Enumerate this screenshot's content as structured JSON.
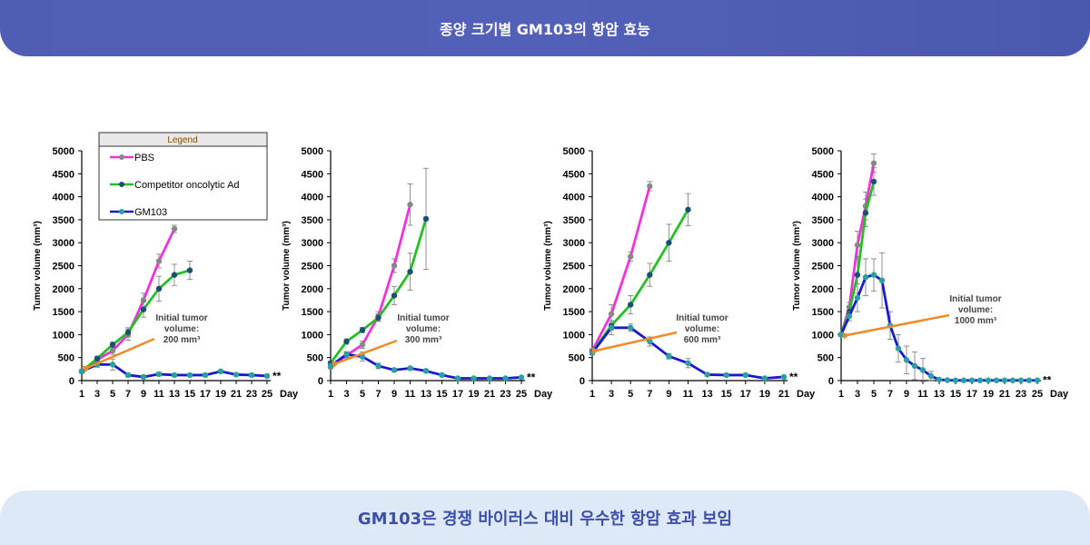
{
  "header": {
    "title": "종양 크기별 GM103의 항암 효능"
  },
  "footer": {
    "caption": "GM103은 경쟁 바이러스 대비 우수한 항암 효과 보임"
  },
  "colors": {
    "PBS": "#ee33dd",
    "Competitor oncolytic Ad": "#22c022",
    "GM103": "#1a1acc",
    "arrow": "#f08a28"
  },
  "legend": {
    "title": "Legend",
    "items": [
      "PBS",
      "Competitor oncolytic Ad",
      "GM103"
    ]
  },
  "chart_data": [
    {
      "type": "line",
      "ylabel": "Tumor volume (mm³)",
      "xlabel": "Day",
      "ylim": [
        0,
        5000
      ],
      "yticks": [
        0,
        500,
        1000,
        1500,
        2000,
        2500,
        3000,
        3500,
        4000,
        4500,
        5000
      ],
      "xticks": [
        1,
        3,
        5,
        7,
        9,
        11,
        13,
        15,
        17,
        19,
        21,
        23,
        25
      ],
      "xlim": [
        1,
        25
      ],
      "annotation": "Initial tumor volume: 200 mm³",
      "annotation_lines": [
        "Initial tumor",
        "volume:",
        "200 mm³"
      ],
      "significance": "**",
      "series": [
        {
          "name": "PBS",
          "x": [
            1,
            3,
            5,
            7,
            9,
            11,
            13
          ],
          "y": [
            200,
            450,
            650,
            1000,
            1750,
            2600,
            3300
          ],
          "err": [
            40,
            50,
            80,
            120,
            150,
            150,
            80
          ]
        },
        {
          "name": "Competitor oncolytic Ad",
          "x": [
            1,
            3,
            5,
            7,
            9,
            11,
            13,
            15
          ],
          "y": [
            200,
            480,
            780,
            1050,
            1550,
            2000,
            2300,
            2400
          ],
          "err": [
            40,
            50,
            60,
            100,
            170,
            270,
            230,
            200
          ]
        },
        {
          "name": "GM103",
          "x": [
            1,
            3,
            5,
            7,
            9,
            11,
            13,
            15,
            17,
            19,
            21,
            23,
            25
          ],
          "y": [
            200,
            350,
            350,
            120,
            80,
            140,
            120,
            120,
            120,
            200,
            130,
            120,
            100
          ],
          "err": [
            30,
            60,
            120,
            40,
            30,
            40,
            30,
            30,
            30,
            30,
            30,
            30,
            20
          ]
        }
      ]
    },
    {
      "type": "line",
      "ylabel": "Tumor volume (mm³)",
      "xlabel": "Day",
      "ylim": [
        0,
        5000
      ],
      "yticks": [
        0,
        500,
        1000,
        1500,
        2000,
        2500,
        3000,
        3500,
        4000,
        4500,
        5000
      ],
      "xticks": [
        1,
        3,
        5,
        7,
        9,
        11,
        13,
        15,
        17,
        19,
        21,
        23,
        25
      ],
      "xlim": [
        1,
        25
      ],
      "annotation": "Initial tumor volume: 300 mm³",
      "annotation_lines": [
        "Initial tumor",
        "volume:",
        "300 mm³"
      ],
      "significance": "**",
      "series": [
        {
          "name": "PBS",
          "x": [
            1,
            3,
            5,
            7,
            9,
            11
          ],
          "y": [
            300,
            550,
            780,
            1400,
            2500,
            3830
          ],
          "err": [
            40,
            70,
            80,
            100,
            150,
            450
          ]
        },
        {
          "name": "Competitor oncolytic Ad",
          "x": [
            1,
            3,
            5,
            7,
            9,
            11,
            13
          ],
          "y": [
            380,
            850,
            1100,
            1370,
            1850,
            2370,
            3520
          ],
          "err": [
            40,
            60,
            60,
            80,
            200,
            400,
            1100
          ]
        },
        {
          "name": "GM103",
          "x": [
            1,
            3,
            5,
            7,
            9,
            11,
            13,
            15,
            17,
            19,
            21,
            23,
            25
          ],
          "y": [
            320,
            570,
            520,
            320,
            230,
            270,
            210,
            120,
            50,
            50,
            50,
            50,
            70
          ],
          "err": [
            40,
            60,
            100,
            60,
            40,
            30,
            30,
            30,
            20,
            20,
            20,
            20,
            20
          ]
        }
      ]
    },
    {
      "type": "line",
      "ylabel": "Tumor volume (mm³)",
      "xlabel": "Day",
      "ylim": [
        0,
        5000
      ],
      "yticks": [
        0,
        500,
        1000,
        1500,
        2000,
        2500,
        3000,
        3500,
        4000,
        4500,
        5000
      ],
      "xticks": [
        1,
        3,
        5,
        7,
        9,
        11,
        13,
        15,
        17,
        19,
        21
      ],
      "xlim": [
        1,
        21
      ],
      "annotation": "Initial tumor volume: 600 mm³",
      "annotation_lines": [
        "Initial tumor",
        "volume:",
        "600 mm³"
      ],
      "significance": "**",
      "series": [
        {
          "name": "PBS",
          "x": [
            1,
            3,
            5,
            7
          ],
          "y": [
            650,
            1450,
            2700,
            4230
          ],
          "err": [
            40,
            200,
            100,
            100
          ]
        },
        {
          "name": "Competitor oncolytic Ad",
          "x": [
            1,
            3,
            5,
            7,
            9,
            11
          ],
          "y": [
            620,
            1200,
            1650,
            2300,
            3000,
            3720
          ],
          "err": [
            40,
            100,
            200,
            250,
            400,
            350
          ]
        },
        {
          "name": "GM103",
          "x": [
            1,
            3,
            5,
            7,
            9,
            11,
            13,
            15,
            17,
            19,
            21
          ],
          "y": [
            600,
            1150,
            1150,
            850,
            530,
            380,
            130,
            120,
            120,
            50,
            80
          ],
          "err": [
            40,
            150,
            80,
            100,
            60,
            100,
            30,
            30,
            30,
            20,
            20
          ]
        }
      ]
    },
    {
      "type": "line",
      "ylabel": "Tumor volume (mm³)",
      "xlabel": "Day",
      "ylim": [
        0,
        5000
      ],
      "yticks": [
        0,
        500,
        1000,
        1500,
        2000,
        2500,
        3000,
        3500,
        4000,
        4500,
        5000
      ],
      "xticks": [
        1,
        3,
        5,
        7,
        9,
        11,
        13,
        15,
        17,
        19,
        21,
        23,
        25
      ],
      "xlim": [
        1,
        25
      ],
      "annotation": "Initial tumor volume: 1000 mm³",
      "annotation_lines": [
        "Initial tumor",
        "volume:",
        "1000 mm³"
      ],
      "significance": "**",
      "series": [
        {
          "name": "PBS",
          "x": [
            1,
            2,
            3,
            4,
            5
          ],
          "y": [
            1000,
            1600,
            2950,
            3800,
            4730
          ],
          "err": [
            40,
            100,
            300,
            300,
            200
          ]
        },
        {
          "name": "Competitor oncolytic Ad",
          "x": [
            1,
            2,
            3,
            4,
            5
          ],
          "y": [
            1000,
            1500,
            2300,
            3650,
            4330
          ],
          "err": [
            40,
            100,
            400,
            300,
            300
          ]
        },
        {
          "name": "GM103",
          "x": [
            1,
            2,
            3,
            4,
            5,
            6,
            7,
            8,
            9,
            10,
            11,
            12,
            13,
            14,
            15,
            16,
            17,
            18,
            19,
            20,
            21,
            22,
            23,
            24,
            25
          ],
          "y": [
            1000,
            1400,
            1800,
            2250,
            2300,
            2180,
            1200,
            700,
            450,
            320,
            230,
            100,
            20,
            10,
            5,
            5,
            5,
            5,
            5,
            5,
            5,
            5,
            5,
            5,
            5
          ],
          "err": [
            40,
            100,
            300,
            400,
            350,
            600,
            300,
            300,
            300,
            300,
            250,
            100,
            20,
            10,
            5,
            5,
            5,
            5,
            5,
            5,
            5,
            5,
            5,
            5,
            5
          ]
        }
      ]
    }
  ]
}
